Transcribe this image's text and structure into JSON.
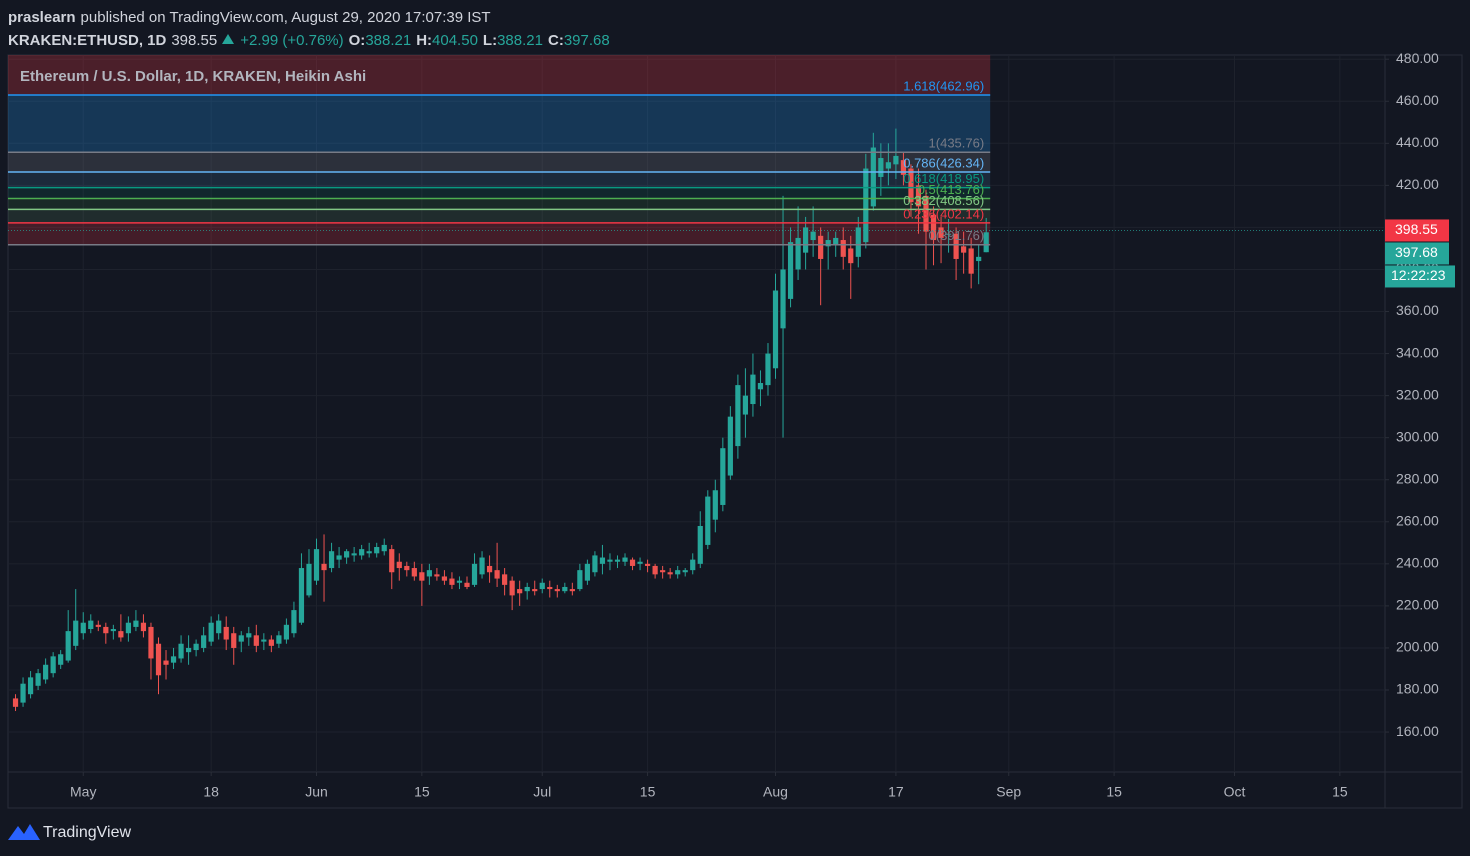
{
  "header": {
    "author": "praslearn",
    "published": "published on TradingView.com, August 29, 2020 17:07:39 IST",
    "symbol": "KRAKEN:ETHUSD, 1D",
    "change": "+2.99 (+0.76%)",
    "ohlc": [
      {
        "key": "O:",
        "value": "388.21"
      },
      {
        "key": "H:",
        "value": "404.50"
      },
      {
        "key": "L:",
        "value": "388.21"
      },
      {
        "key": "C:",
        "value": "397.68"
      }
    ]
  },
  "footer": {
    "brand": "TradingView"
  },
  "chart_data": {
    "type": "candlestick",
    "title": "Ethereum / U.S. Dollar, 1D, KRAKEN, Heikin Ashi",
    "up_color": "#26a69a",
    "down_color": "#ef5350",
    "grid": true,
    "last_price": 398.55,
    "countdown": "12:22:23",
    "x": [
      "Apr 22",
      "Apr 23",
      "Apr 24",
      "Apr 25",
      "Apr 26",
      "Apr 27",
      "Apr 28",
      "Apr 29",
      "Apr 30",
      "May 1",
      "May 2",
      "May 3",
      "May 4",
      "May 5",
      "May 6",
      "May 7",
      "May 8",
      "May 9",
      "May 10",
      "May 11",
      "May 12",
      "May 13",
      "May 14",
      "May 15",
      "May 16",
      "May 17",
      "May 18",
      "May 19",
      "May 20",
      "May 21",
      "May 22",
      "May 23",
      "May 24",
      "May 25",
      "May 26",
      "May 27",
      "May 28",
      "May 29",
      "May 30",
      "May 31",
      "Jun 1",
      "Jun 2",
      "Jun 3",
      "Jun 4",
      "Jun 5",
      "Jun 6",
      "Jun 7",
      "Jun 8",
      "Jun 9",
      "Jun 10",
      "Jun 11",
      "Jun 12",
      "Jun 13",
      "Jun 14",
      "Jun 15",
      "Jun 16",
      "Jun 17",
      "Jun 18",
      "Jun 19",
      "Jun 20",
      "Jun 21",
      "Jun 22",
      "Jun 23",
      "Jun 24",
      "Jun 25",
      "Jun 26",
      "Jun 27",
      "Jun 28",
      "Jun 29",
      "Jun 30",
      "Jul 1",
      "Jul 2",
      "Jul 3",
      "Jul 4",
      "Jul 5",
      "Jul 6",
      "Jul 7",
      "Jul 8",
      "Jul 9",
      "Jul 10",
      "Jul 11",
      "Jul 12",
      "Jul 13",
      "Jul 14",
      "Jul 15",
      "Jul 16",
      "Jul 17",
      "Jul 18",
      "Jul 19",
      "Jul 20",
      "Jul 21",
      "Jul 22",
      "Jul 23",
      "Jul 24",
      "Jul 25",
      "Jul 26",
      "Jul 27",
      "Jul 28",
      "Jul 29",
      "Jul 30",
      "Jul 31",
      "Aug 1",
      "Aug 2",
      "Aug 3",
      "Aug 4",
      "Aug 5",
      "Aug 6",
      "Aug 7",
      "Aug 8",
      "Aug 9",
      "Aug 10",
      "Aug 11",
      "Aug 12",
      "Aug 13",
      "Aug 14",
      "Aug 15",
      "Aug 16",
      "Aug 17",
      "Aug 18",
      "Aug 19",
      "Aug 20",
      "Aug 21",
      "Aug 22",
      "Aug 23",
      "Aug 24",
      "Aug 25",
      "Aug 26",
      "Aug 27",
      "Aug 28",
      "Aug 29"
    ],
    "open": [
      176,
      174,
      178,
      182,
      185,
      188,
      192,
      194,
      201,
      207,
      209,
      211,
      210,
      208,
      208,
      207,
      210,
      212,
      210,
      202,
      194,
      193,
      195,
      198,
      199,
      200,
      203,
      207,
      210,
      207,
      203,
      205,
      206,
      203,
      204,
      202,
      204,
      207,
      212,
      225,
      232,
      240,
      238,
      242,
      243,
      244,
      244,
      245,
      245,
      246,
      247,
      241,
      239,
      238,
      236,
      234,
      235,
      234,
      233,
      231,
      231,
      230,
      235,
      239,
      237,
      235,
      232,
      228,
      227,
      228,
      228,
      229,
      228,
      227,
      228,
      228,
      232,
      236,
      240,
      241,
      241,
      241,
      242,
      240,
      240,
      239,
      237,
      236,
      235,
      236,
      237,
      240,
      249,
      261,
      268,
      282,
      296,
      311,
      316,
      323,
      325,
      333,
      352,
      366,
      380,
      388,
      394,
      396,
      391,
      392,
      394,
      390,
      386,
      393,
      410,
      424,
      428,
      430,
      432,
      428,
      420,
      415,
      406,
      400,
      397,
      397,
      391,
      390,
      384,
      388.21
    ],
    "high": [
      178,
      186,
      189,
      190,
      195,
      198,
      199,
      218,
      228,
      217,
      216,
      213,
      212,
      211,
      216,
      215,
      218,
      216,
      212,
      205,
      199,
      200,
      206,
      206,
      204,
      210,
      215,
      216,
      215,
      210,
      208,
      210,
      211,
      207,
      206,
      208,
      214,
      222,
      245,
      247,
      252,
      254,
      250,
      248,
      247,
      248,
      249,
      250,
      250,
      252,
      249,
      245,
      241,
      241,
      240,
      240,
      238,
      237,
      236,
      234,
      234,
      245,
      246,
      244,
      250,
      238,
      234,
      232,
      231,
      232,
      233,
      232,
      230,
      231,
      231,
      240,
      242,
      246,
      249,
      245,
      244,
      245,
      243,
      243,
      242,
      240,
      239,
      238,
      239,
      238,
      245,
      265,
      275,
      280,
      300,
      315,
      330,
      333,
      340,
      332,
      345,
      378,
      415,
      400,
      410,
      405,
      410,
      400,
      398,
      398,
      400,
      396,
      405,
      435,
      445,
      440,
      440,
      447,
      436,
      430,
      428,
      418,
      410,
      405,
      404,
      400,
      398,
      395,
      392,
      404.5
    ],
    "low": [
      170,
      172,
      176,
      180,
      183,
      186,
      190,
      193,
      199,
      204,
      207,
      208,
      202,
      204,
      203,
      203,
      208,
      205,
      185,
      178,
      185,
      190,
      193,
      192,
      196,
      198,
      201,
      204,
      199,
      192,
      198,
      201,
      198,
      199,
      198,
      200,
      202,
      205,
      211,
      224,
      230,
      222,
      236,
      238,
      240,
      241,
      242,
      243,
      243,
      244,
      228,
      232,
      234,
      232,
      220,
      230,
      232,
      230,
      228,
      228,
      228,
      229,
      233,
      231,
      229,
      225,
      218,
      220,
      223,
      225,
      226,
      224,
      224,
      226,
      225,
      227,
      230,
      234,
      235,
      237,
      238,
      239,
      237,
      237,
      236,
      233,
      233,
      233,
      233,
      234,
      235,
      238,
      247,
      255,
      265,
      280,
      290,
      300,
      310,
      315,
      320,
      328,
      300,
      362,
      375,
      380,
      386,
      363,
      380,
      386,
      380,
      366,
      381,
      390,
      408,
      415,
      420,
      423,
      420,
      405,
      397,
      380,
      382,
      383,
      388,
      375,
      378,
      371,
      373,
      388.21
    ],
    "close": [
      172,
      183,
      186,
      188,
      192,
      196,
      197,
      208,
      213,
      212,
      213,
      210,
      207,
      209,
      205,
      212,
      213,
      208,
      195,
      187,
      192,
      196,
      202,
      200,
      202,
      206,
      212,
      213,
      204,
      200,
      206,
      207,
      201,
      204,
      201,
      206,
      211,
      218,
      238,
      240,
      247,
      237,
      246,
      244,
      246,
      245,
      247,
      246,
      248,
      249,
      236,
      238,
      237,
      234,
      232,
      237,
      234,
      232,
      230,
      232,
      229,
      240,
      243,
      236,
      233,
      230,
      225,
      226,
      229,
      227,
      231,
      228,
      227,
      229,
      227,
      237,
      240,
      244,
      243,
      242,
      242,
      243,
      239,
      241,
      239,
      235,
      236,
      235,
      237,
      237,
      242,
      258,
      272,
      275,
      295,
      310,
      325,
      320,
      330,
      326,
      340,
      370,
      380,
      393,
      395,
      400,
      398,
      385,
      394,
      395,
      386,
      383,
      400,
      428,
      438,
      433,
      431,
      434,
      425,
      412,
      410,
      398,
      394,
      395,
      397,
      385,
      388,
      378,
      386,
      397.68
    ],
    "xlim": [
      "Apr 21",
      "Oct 21"
    ],
    "xticks": [
      {
        "value": "May 1",
        "label": "May"
      },
      {
        "value": "May 18",
        "label": "18"
      },
      {
        "value": "Jun 1",
        "label": "Jun"
      },
      {
        "value": "Jun 15",
        "label": "15"
      },
      {
        "value": "Jul 1",
        "label": "Jul"
      },
      {
        "value": "Jul 15",
        "label": "15"
      },
      {
        "value": "Aug 1",
        "label": "Aug"
      },
      {
        "value": "Aug 17",
        "label": "17"
      },
      {
        "value": "Sep 1",
        "label": "Sep"
      },
      {
        "value": "Sep 15",
        "label": "15"
      },
      {
        "value": "Oct 1",
        "label": "Oct"
      },
      {
        "value": "Oct 15",
        "label": "15"
      }
    ],
    "ylim": [
      141,
      482
    ],
    "yticks": [
      {
        "value": 480,
        "label": "480.00"
      },
      {
        "value": 460,
        "label": "460.00"
      },
      {
        "value": 440,
        "label": "440.00"
      },
      {
        "value": 420,
        "label": "420.00"
      },
      {
        "value": 400,
        "label": "400.00"
      },
      {
        "value": 380,
        "label": "380.00"
      },
      {
        "value": 360,
        "label": "360.00"
      },
      {
        "value": 340,
        "label": "340.00"
      },
      {
        "value": 320,
        "label": "320.00"
      },
      {
        "value": 300,
        "label": "300.00"
      },
      {
        "value": 280,
        "label": "280.00"
      },
      {
        "value": 260,
        "label": "260.00"
      },
      {
        "value": 240,
        "label": "240.00"
      },
      {
        "value": 220,
        "label": "220.00"
      },
      {
        "value": 200,
        "label": "200.00"
      },
      {
        "value": 180,
        "label": "180.00"
      },
      {
        "value": 160,
        "label": "160.00"
      }
    ],
    "fib": {
      "top_fill": "rgba(242,54,69,0.25)",
      "levels": [
        {
          "label": "1.618(462.96)",
          "value": 462.96,
          "color": "#2196f3",
          "fill": "rgba(33,150,243,0.25)"
        },
        {
          "label": "1(435.76)",
          "value": 435.76,
          "color": "#787b86",
          "fill": "rgba(120,123,134,0.25)"
        },
        {
          "label": "0.786(426.34)",
          "value": 426.34,
          "color": "#64b5f6",
          "fill": "rgba(100,181,246,0.12)"
        },
        {
          "label": "0.618(418.95)",
          "value": 418.95,
          "color": "#089981",
          "fill": "rgba(8,153,129,0.12)"
        },
        {
          "label": "0.5(413.76)",
          "value": 413.76,
          "color": "#4caf50",
          "fill": "rgba(76,175,80,0.12)"
        },
        {
          "label": "0.382(408.56)",
          "value": 408.56,
          "color": "#81c784",
          "fill": "rgba(129,199,132,0.12)"
        },
        {
          "label": "0.236(402.14)",
          "value": 402.14,
          "color": "#f23645",
          "fill": "rgba(242,54,69,0.22)"
        },
        {
          "label": "0(391.76)",
          "value": 391.76,
          "color": "#787b86"
        }
      ]
    }
  }
}
